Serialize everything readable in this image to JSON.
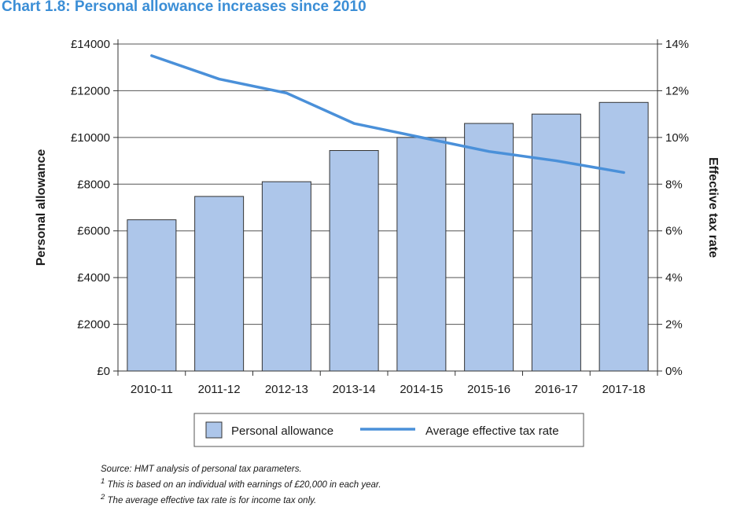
{
  "chart_data": {
    "type": "bar",
    "title": "Chart 1.8: Personal allowance increases since 2010",
    "categories": [
      "2010-11",
      "2011-12",
      "2012-13",
      "2013-14",
      "2014-15",
      "2015-16",
      "2016-17",
      "2017-18"
    ],
    "series": [
      {
        "name": "Personal allowance",
        "type": "bar",
        "axis": "left",
        "color": "#adc6ea",
        "values": [
          6475,
          7475,
          8105,
          9440,
          10000,
          10600,
          11000,
          11500
        ]
      },
      {
        "name": "Average effective tax rate",
        "type": "line",
        "axis": "right",
        "color": "#4a90d9",
        "values": [
          13.5,
          12.5,
          11.9,
          10.6,
          10.0,
          9.4,
          9.0,
          8.5
        ]
      }
    ],
    "ylabel": "Personal allowance",
    "ylim": [
      0,
      14000
    ],
    "yticks": [
      "£0",
      "£2000",
      "£4000",
      "£6000",
      "£8000",
      "£10000",
      "£12000",
      "£14000"
    ],
    "y2label": "Effective tax rate",
    "y2lim": [
      0,
      14
    ],
    "y2ticks": [
      "0%",
      "2%",
      "4%",
      "6%",
      "8%",
      "10%",
      "12%",
      "14%"
    ],
    "legend": [
      "Personal allowance",
      "Average effective tax rate"
    ],
    "legend_position": "bottom"
  },
  "notes": {
    "source": "Source: HMT analysis of personal tax parameters.",
    "footnote1_mark": "1",
    "footnote1": " This is based on an individual with earnings of £20,000 in each year.",
    "footnote2_mark": "2",
    "footnote2": " The average effective tax rate is for income tax only."
  }
}
